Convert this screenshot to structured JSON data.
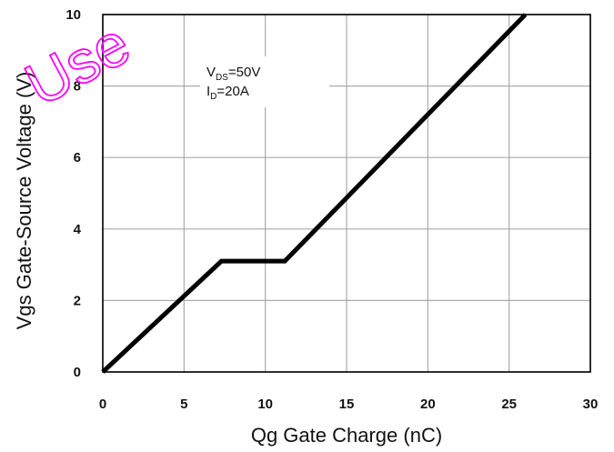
{
  "chart_data": {
    "type": "line",
    "xlabel": "Qg Gate Charge (nC)",
    "ylabel": "Vgs Gate-Source Voltage (V)",
    "xlim": [
      0,
      30
    ],
    "ylim": [
      0,
      10
    ],
    "x_ticks": [
      "0",
      "5",
      "10",
      "15",
      "20",
      "25",
      "30"
    ],
    "y_ticks": [
      "0",
      "2",
      "4",
      "6",
      "8",
      "10"
    ],
    "grid": true,
    "series": [
      {
        "x": [
          0,
          7.3,
          11.2,
          26
        ],
        "y": [
          0,
          3.1,
          3.1,
          10.0
        ]
      }
    ],
    "annotation": {
      "line1_main": "V",
      "line1_sub": "DS",
      "line1_value": "=50V",
      "line2_main": "I",
      "line2_sub": "D",
      "line2_value": "=20A"
    },
    "colors": {
      "line": "#000000",
      "grid": "#aaaaaa",
      "watermark": "#ff00ff"
    }
  },
  "watermark": "Use"
}
